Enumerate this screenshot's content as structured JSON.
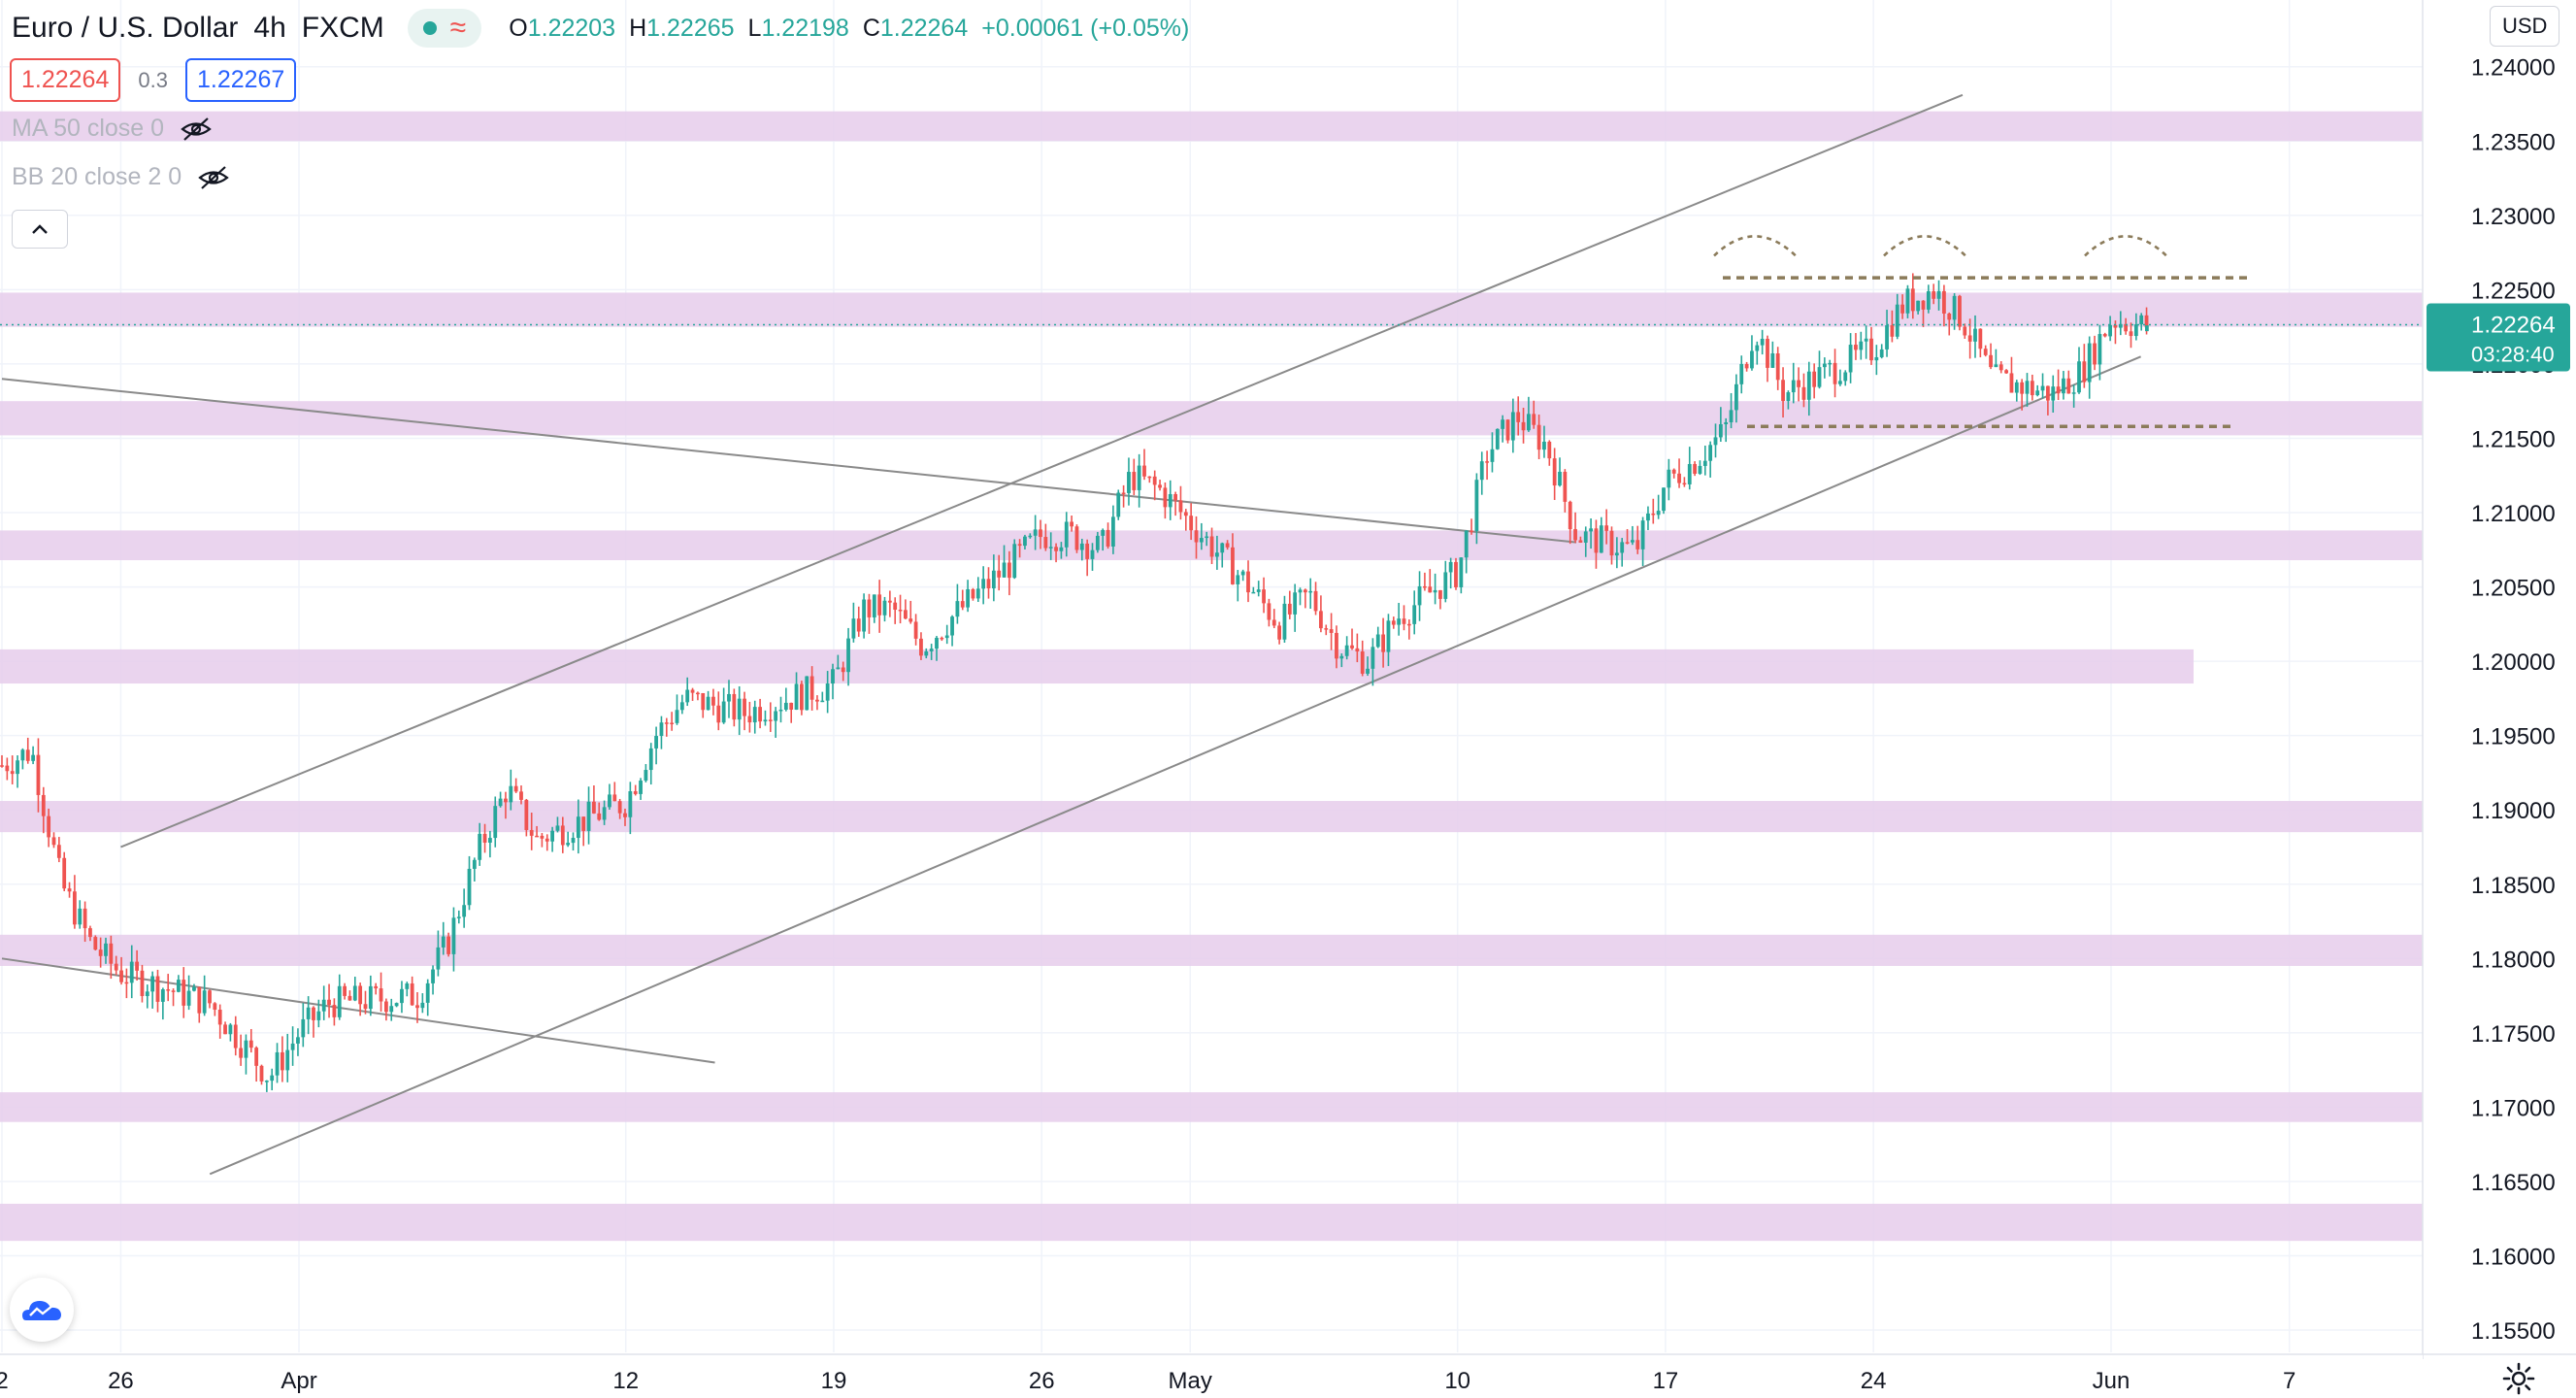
{
  "header": {
    "symbol": "Euro / U.S. Dollar",
    "interval": "4h",
    "exchange": "FXCM",
    "ohlc": {
      "o_label": "O",
      "o_value": "1.22203",
      "h_label": "H",
      "h_value": "1.22265",
      "l_label": "L",
      "l_value": "1.22198",
      "c_label": "C",
      "c_value": "1.22264",
      "change": "+0.00061 (+0.05%)"
    }
  },
  "trade": {
    "sell_price": "1.22264",
    "spread": "0.3",
    "buy_price": "1.22267"
  },
  "indicators": [
    {
      "label": "MA 50 close 0",
      "icon": "eye-crossed-icon"
    },
    {
      "label": "BB 20 close 2 0",
      "icon": "eye-crossed-icon"
    }
  ],
  "currency": "USD",
  "last_price_label": {
    "price": "1.22264",
    "countdown": "03:28:40"
  },
  "colors": {
    "up": "#26a69a",
    "down": "#ef5350",
    "zone": "#e6cdeb",
    "line": "#8a8a8a",
    "dashed": "#8b7b5a"
  },
  "chart_data": {
    "type": "candlestick",
    "instrument": "EURUSD",
    "timeframe": "4h",
    "y_axis": {
      "range": [
        1.1535,
        1.2424
      ],
      "ticks": [
        "1.24000",
        "1.23500",
        "1.23000",
        "1.22500",
        "1.22000",
        "1.21500",
        "1.21000",
        "1.20500",
        "1.20000",
        "1.19500",
        "1.19000",
        "1.18500",
        "1.18000",
        "1.17500",
        "1.17000",
        "1.16500",
        "1.16000",
        "1.15500"
      ]
    },
    "x_axis": {
      "ticks": [
        {
          "label": "2",
          "date": "2021-03-22"
        },
        {
          "label": "26",
          "date": "2021-03-26"
        },
        {
          "label": "Apr",
          "date": "2021-04-01"
        },
        {
          "label": "12",
          "date": "2021-04-12"
        },
        {
          "label": "19",
          "date": "2021-04-19"
        },
        {
          "label": "26",
          "date": "2021-04-26"
        },
        {
          "label": "May",
          "date": "2021-05-01"
        },
        {
          "label": "10",
          "date": "2021-05-10"
        },
        {
          "label": "17",
          "date": "2021-05-17"
        },
        {
          "label": "24",
          "date": "2021-05-24"
        },
        {
          "label": "Jun",
          "date": "2021-06-01"
        },
        {
          "label": "7",
          "date": "2021-06-07"
        }
      ]
    },
    "close_path": [
      [
        "2021-03-22",
        1.193
      ],
      [
        "2021-03-23",
        1.194
      ],
      [
        "2021-03-24",
        1.185
      ],
      [
        "2021-03-25",
        1.181
      ],
      [
        "2021-03-26",
        1.179
      ],
      [
        "2021-03-29",
        1.177
      ],
      [
        "2021-03-31",
        1.172
      ],
      [
        "2021-04-01",
        1.175
      ],
      [
        "2021-04-02",
        1.177
      ],
      [
        "2021-04-05",
        1.1775
      ],
      [
        "2021-04-06",
        1.181
      ],
      [
        "2021-04-07",
        1.187
      ],
      [
        "2021-04-08",
        1.1915
      ],
      [
        "2021-04-09",
        1.188
      ],
      [
        "2021-04-12",
        1.1905
      ],
      [
        "2021-04-13",
        1.195
      ],
      [
        "2021-04-14",
        1.1975
      ],
      [
        "2021-04-15",
        1.197
      ],
      [
        "2021-04-16",
        1.1965
      ],
      [
        "2021-04-19",
        1.1985
      ],
      [
        "2021-04-20",
        1.2035
      ],
      [
        "2021-04-21",
        1.2035
      ],
      [
        "2021-04-22",
        1.201
      ],
      [
        "2021-04-23",
        1.203
      ],
      [
        "2021-04-26",
        1.2085
      ],
      [
        "2021-04-27",
        1.2085
      ],
      [
        "2021-04-28",
        1.2075
      ],
      [
        "2021-04-29",
        1.2125
      ],
      [
        "2021-04-30",
        1.2115
      ],
      [
        "2021-05-03",
        1.205
      ],
      [
        "2021-05-04",
        1.2025
      ],
      [
        "2021-05-05",
        1.2045
      ],
      [
        "2021-05-06",
        1.201
      ],
      [
        "2021-05-07",
        1.2
      ],
      [
        "2021-05-08",
        1.203
      ],
      [
        "2021-05-10",
        1.206
      ],
      [
        "2021-05-11",
        1.214
      ],
      [
        "2021-05-12",
        1.2165
      ],
      [
        "2021-05-13",
        1.2145
      ],
      [
        "2021-05-14",
        1.2085
      ],
      [
        "2021-05-16",
        1.2075
      ],
      [
        "2021-05-17",
        1.212
      ],
      [
        "2021-05-18",
        1.2135
      ],
      [
        "2021-05-19",
        1.2155
      ],
      [
        "2021-05-20",
        1.2225
      ],
      [
        "2021-05-21",
        1.218
      ],
      [
        "2021-05-24",
        1.221
      ],
      [
        "2021-05-25",
        1.224
      ],
      [
        "2021-05-26",
        1.225
      ],
      [
        "2021-05-27",
        1.223
      ],
      [
        "2021-05-28",
        1.219
      ],
      [
        "2021-05-30",
        1.218
      ],
      [
        "2021-05-31",
        1.2195
      ],
      [
        "2021-06-01",
        1.223
      ],
      [
        "2021-06-02",
        1.2226
      ]
    ],
    "drawings": {
      "horizontal_zones": [
        [
          1.235,
          1.237
        ],
        [
          1.2225,
          1.2248
        ],
        [
          1.2152,
          1.2175
        ],
        [
          1.2068,
          1.2088
        ],
        [
          1.1985,
          1.2008
        ],
        [
          1.1885,
          1.1906
        ],
        [
          1.1795,
          1.1816
        ],
        [
          1.169,
          1.171
        ],
        [
          1.161,
          1.1635
        ]
      ],
      "resistance_level": 1.2258,
      "support_level": 1.2158
    }
  }
}
